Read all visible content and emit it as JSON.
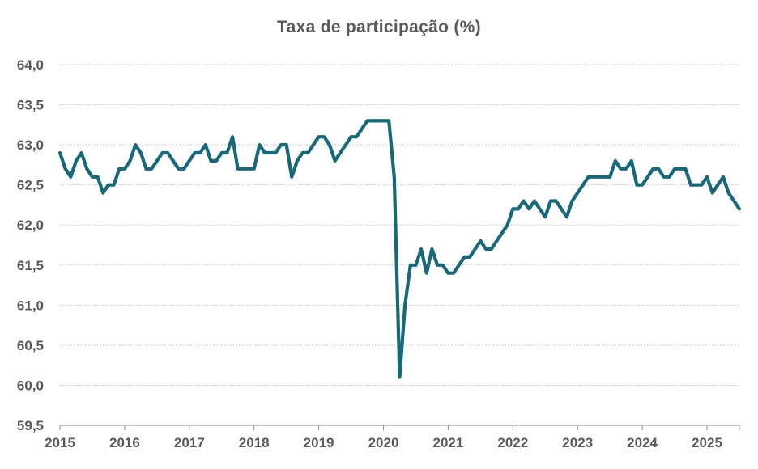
{
  "chart_data": {
    "type": "line",
    "title": "Taxa de participação (%)",
    "xlabel": "",
    "ylabel": "",
    "frequency": "monthly",
    "start": "2015-01",
    "end": "2025-07",
    "ylim": [
      59.5,
      64.0
    ],
    "yticks": [
      "59,5",
      "60,0",
      "60,5",
      "61,0",
      "61,5",
      "62,0",
      "62,5",
      "63,0",
      "63,5",
      "64,0"
    ],
    "xticks": [
      "2015",
      "2016",
      "2017",
      "2018",
      "2019",
      "2020",
      "2021",
      "2022",
      "2023",
      "2024",
      "2025"
    ],
    "grid": "horizontal dotted",
    "legend": "none",
    "line_color": "#17697a",
    "series": [
      {
        "name": "Taxa de participação",
        "values": [
          62.9,
          62.7,
          62.6,
          62.8,
          62.9,
          62.7,
          62.6,
          62.6,
          62.4,
          62.5,
          62.5,
          62.7,
          62.7,
          62.8,
          63.0,
          62.9,
          62.7,
          62.7,
          62.8,
          62.9,
          62.9,
          62.8,
          62.7,
          62.7,
          62.8,
          62.9,
          62.9,
          63.0,
          62.8,
          62.8,
          62.9,
          62.9,
          63.1,
          62.7,
          62.7,
          62.7,
          62.7,
          63.0,
          62.9,
          62.9,
          62.9,
          63.0,
          63.0,
          62.6,
          62.8,
          62.9,
          62.9,
          63.0,
          63.1,
          63.1,
          63.0,
          62.8,
          62.9,
          63.0,
          63.1,
          63.1,
          63.2,
          63.3,
          63.3,
          63.3,
          63.3,
          63.3,
          62.6,
          60.1,
          61.0,
          61.5,
          61.5,
          61.7,
          61.4,
          61.7,
          61.5,
          61.5,
          61.4,
          61.4,
          61.5,
          61.6,
          61.6,
          61.7,
          61.8,
          61.7,
          61.7,
          61.8,
          61.9,
          62.0,
          62.2,
          62.2,
          62.3,
          62.2,
          62.3,
          62.2,
          62.1,
          62.3,
          62.3,
          62.2,
          62.1,
          62.3,
          62.4,
          62.5,
          62.6,
          62.6,
          62.6,
          62.6,
          62.6,
          62.8,
          62.7,
          62.7,
          62.8,
          62.5,
          62.5,
          62.6,
          62.7,
          62.7,
          62.6,
          62.6,
          62.7,
          62.7,
          62.7,
          62.5,
          62.5,
          62.5,
          62.6,
          62.4,
          62.5,
          62.6,
          62.4,
          62.3,
          62.2
        ]
      }
    ]
  }
}
